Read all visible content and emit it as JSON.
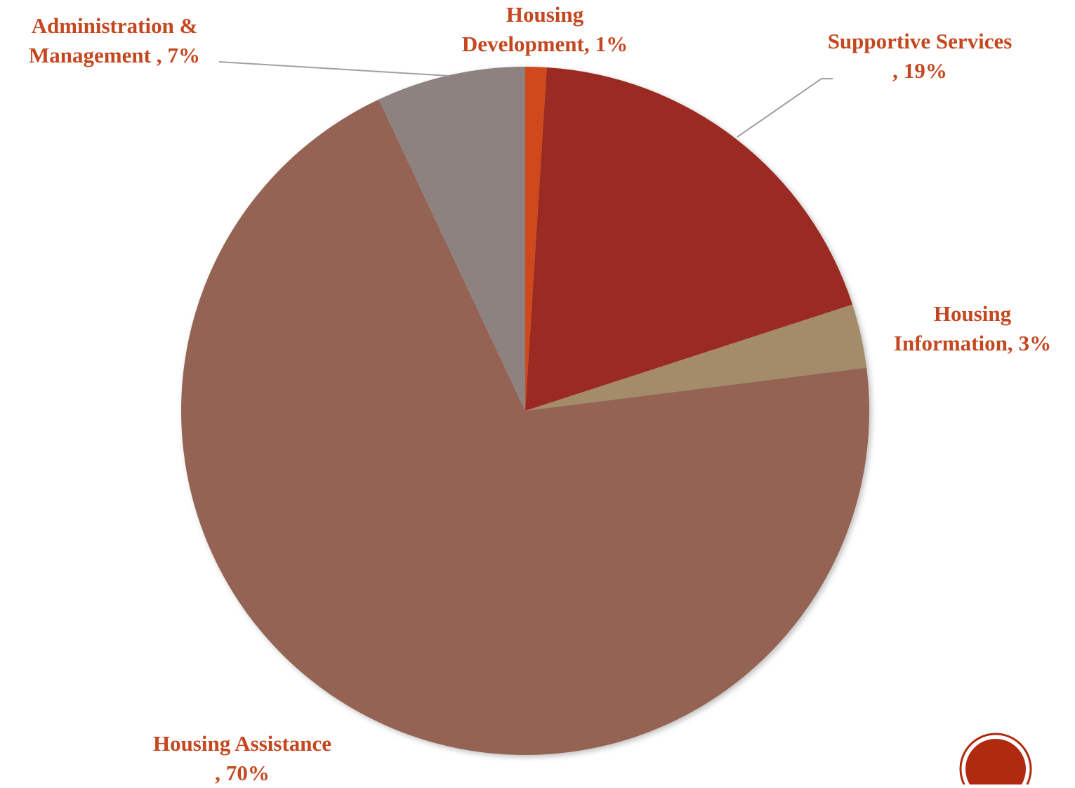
{
  "chart_data": {
    "type": "pie",
    "categories": [
      "Housing Development,",
      "Supportive Services ,",
      "Housing Information,",
      "Housing Assistance ,",
      "Administration & Management ,"
    ],
    "values": [
      1,
      19,
      3,
      70,
      7
    ],
    "value_labels": [
      "1%",
      "19%",
      "3%",
      "70%",
      "7%"
    ],
    "colors": [
      "#d04a1c",
      "#9a2c20",
      "#a48b6a",
      "#946353",
      "#8e8280"
    ]
  }
}
